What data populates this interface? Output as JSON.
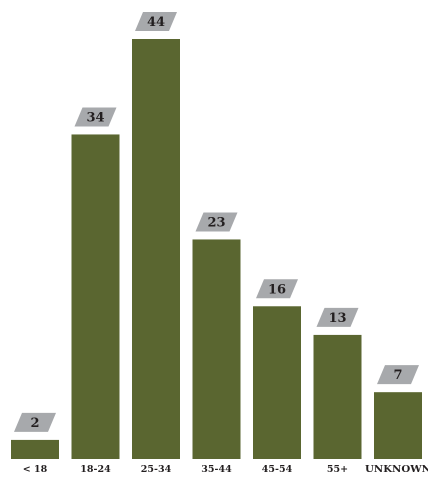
{
  "chart_data": {
    "type": "bar",
    "categories": [
      "< 18",
      "18-24",
      "25-34",
      "35-44",
      "45-54",
      "55+",
      "UNKNOWN"
    ],
    "values": [
      2,
      34,
      44,
      23,
      16,
      13,
      7
    ],
    "title": "",
    "xlabel": "",
    "ylabel": "",
    "ylim": [
      0,
      44
    ],
    "grid": false,
    "data_labels": true,
    "colors": {
      "bar": "#5a6630",
      "label_badge": "#a7a9ac",
      "text": "#231f20"
    }
  }
}
